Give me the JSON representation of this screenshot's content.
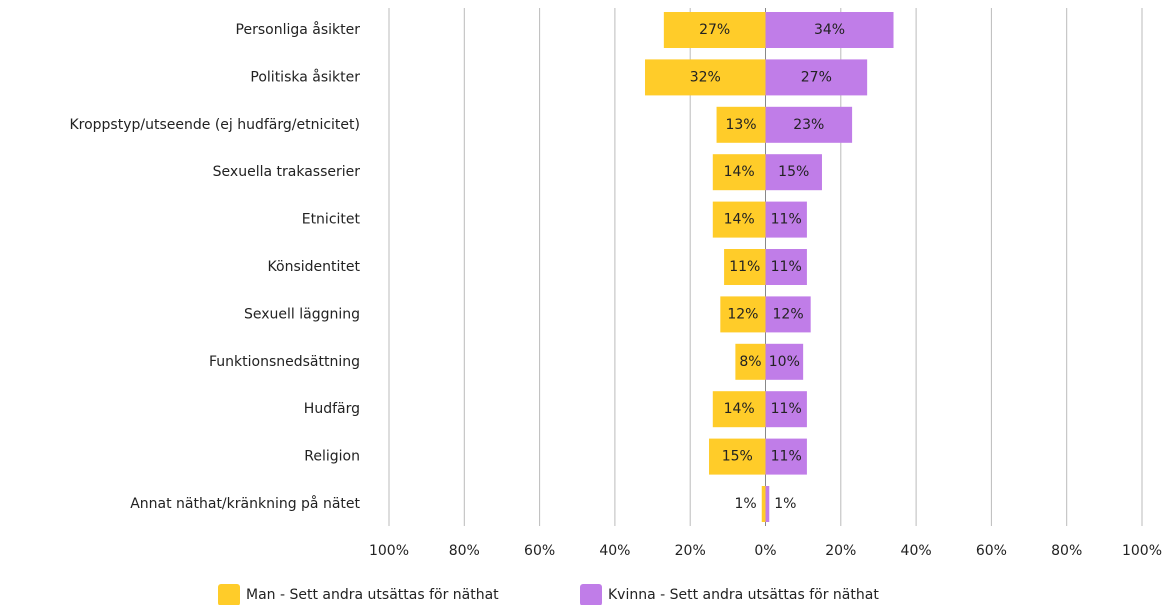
{
  "chart_data": {
    "type": "diverging-bar",
    "categories": [
      "Personliga åsikter",
      "Politiska åsikter",
      "Kroppstyp/utseende (ej hudfärg/etnicitet)",
      "Sexuella trakasserier ",
      "Etnicitet",
      "Könsidentitet",
      "Sexuell läggning",
      "Funktionsnedsättning",
      "Hudfärg",
      "Religion",
      "Annat näthat/kränkning på nätet"
    ],
    "series": [
      {
        "name": "Man - Sett andra utsättas för näthat",
        "color": "#ffcc29",
        "side": "left",
        "values": [
          27,
          32,
          13,
          14,
          14,
          11,
          12,
          8,
          14,
          15,
          1
        ],
        "value_labels": [
          "27%",
          "32%",
          "13%",
          "14%",
          "14%",
          "11%",
          "12%",
          "8%",
          "14%",
          "15%",
          "1%"
        ]
      },
      {
        "name": "Kvinna - Sett andra utsättas för näthat",
        "color": "#c07de8",
        "side": "right",
        "values": [
          34,
          27,
          23,
          15,
          11,
          11,
          12,
          10,
          11,
          11,
          1
        ],
        "value_labels": [
          "34%",
          "27%",
          "23%",
          "15%",
          "11%",
          "11%",
          "12%",
          "10%",
          "11%",
          "11%",
          "1%"
        ]
      }
    ],
    "xlim": [
      -100,
      100
    ],
    "xticks": [
      {
        "value": -100,
        "label": "100%"
      },
      {
        "value": -80,
        "label": "80%"
      },
      {
        "value": -60,
        "label": "60%"
      },
      {
        "value": -40,
        "label": "40%"
      },
      {
        "value": -20,
        "label": "20%"
      },
      {
        "value": 0,
        "label": "0%"
      },
      {
        "value": 20,
        "label": "20%"
      },
      {
        "value": 40,
        "label": "40%"
      },
      {
        "value": 60,
        "label": "60%"
      },
      {
        "value": 80,
        "label": "80%"
      },
      {
        "value": 100,
        "label": "100%"
      }
    ],
    "grid": true,
    "legend": "bottom"
  }
}
